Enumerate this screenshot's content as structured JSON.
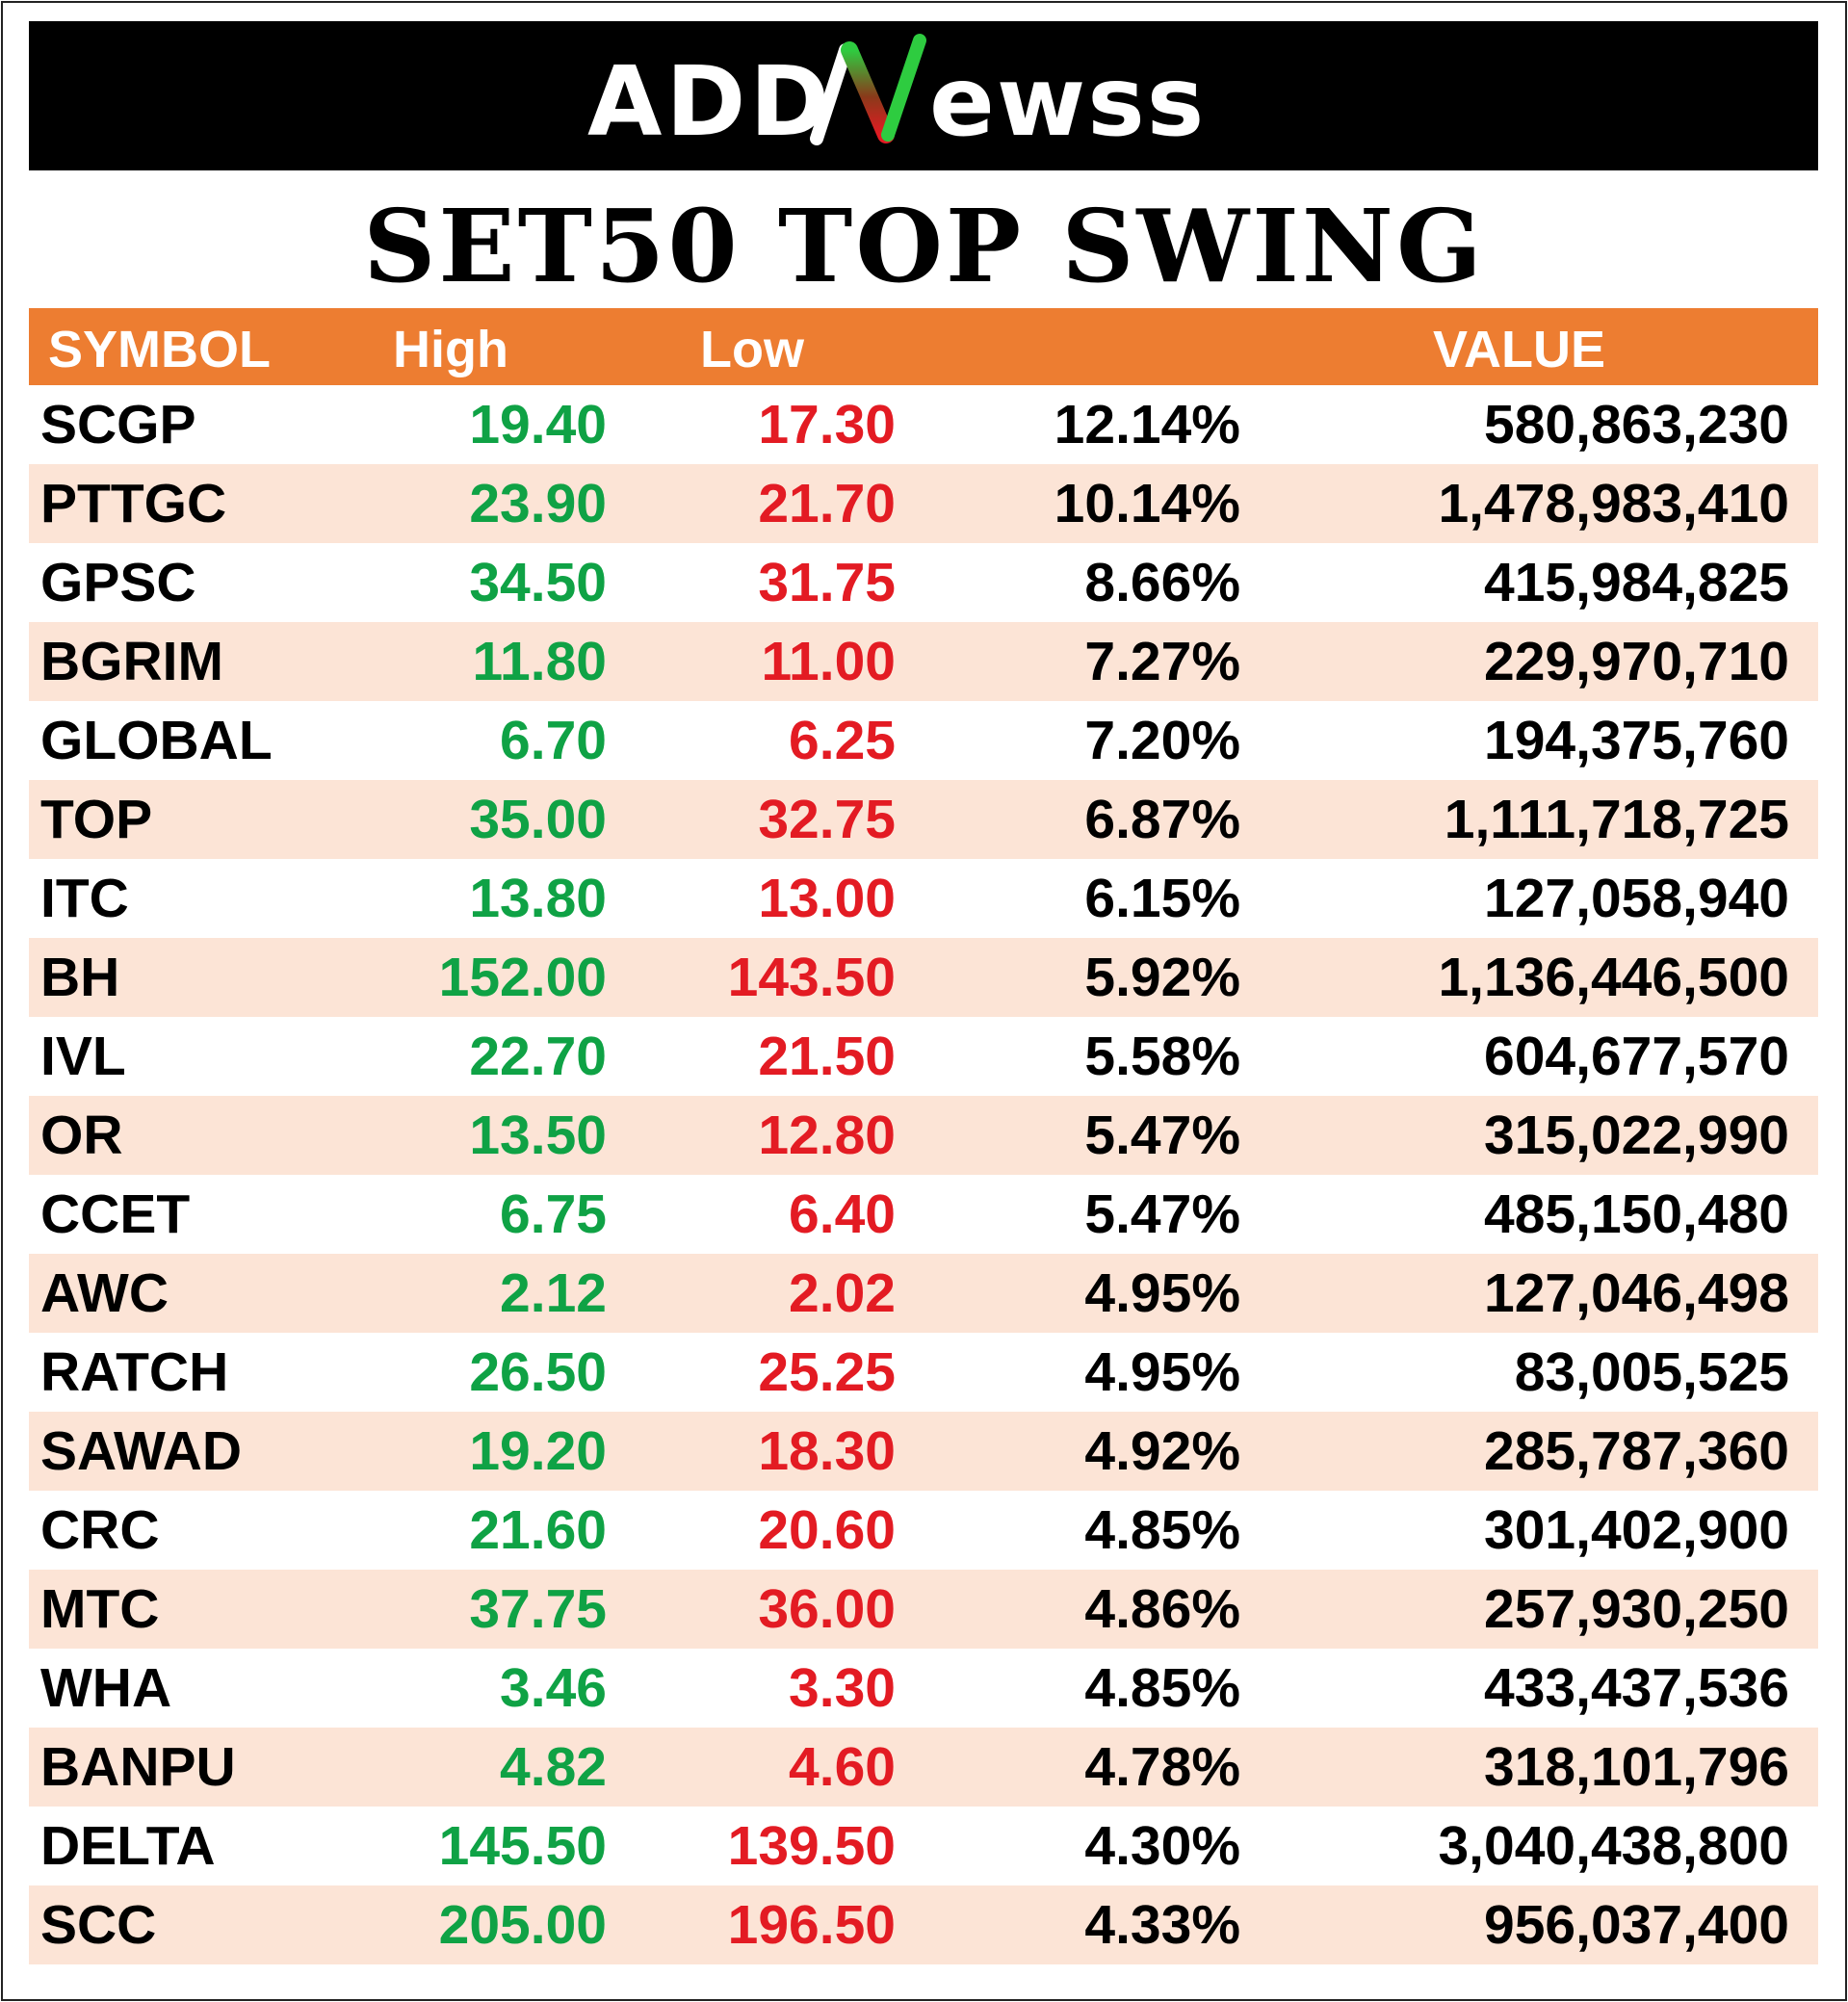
{
  "brand": {
    "logo_text_left": "ADD",
    "logo_text_right": "ewss",
    "logo_icon": "green-red-N-stroke-icon"
  },
  "title": "SET50 TOP SWING",
  "table": {
    "headers": {
      "symbol": "SYMBOL",
      "high": "High",
      "low": "Low",
      "change": "",
      "value": "VALUE"
    },
    "rows": [
      {
        "symbol": "SCGP",
        "high": "19.40",
        "low": "17.30",
        "change": "12.14%",
        "value": "580,863,230"
      },
      {
        "symbol": "PTTGC",
        "high": "23.90",
        "low": "21.70",
        "change": "10.14%",
        "value": "1,478,983,410"
      },
      {
        "symbol": "GPSC",
        "high": "34.50",
        "low": "31.75",
        "change": "8.66%",
        "value": "415,984,825"
      },
      {
        "symbol": "BGRIM",
        "high": "11.80",
        "low": "11.00",
        "change": "7.27%",
        "value": "229,970,710"
      },
      {
        "symbol": "GLOBAL",
        "high": "6.70",
        "low": "6.25",
        "change": "7.20%",
        "value": "194,375,760"
      },
      {
        "symbol": "TOP",
        "high": "35.00",
        "low": "32.75",
        "change": "6.87%",
        "value": "1,111,718,725"
      },
      {
        "symbol": "ITC",
        "high": "13.80",
        "low": "13.00",
        "change": "6.15%",
        "value": "127,058,940"
      },
      {
        "symbol": "BH",
        "high": "152.00",
        "low": "143.50",
        "change": "5.92%",
        "value": "1,136,446,500"
      },
      {
        "symbol": "IVL",
        "high": "22.70",
        "low": "21.50",
        "change": "5.58%",
        "value": "604,677,570"
      },
      {
        "symbol": "OR",
        "high": "13.50",
        "low": "12.80",
        "change": "5.47%",
        "value": "315,022,990"
      },
      {
        "symbol": "CCET",
        "high": "6.75",
        "low": "6.40",
        "change": "5.47%",
        "value": "485,150,480"
      },
      {
        "symbol": "AWC",
        "high": "2.12",
        "low": "2.02",
        "change": "4.95%",
        "value": "127,046,498"
      },
      {
        "symbol": "RATCH",
        "high": "26.50",
        "low": "25.25",
        "change": "4.95%",
        "value": "83,005,525"
      },
      {
        "symbol": "SAWAD",
        "high": "19.20",
        "low": "18.30",
        "change": "4.92%",
        "value": "285,787,360"
      },
      {
        "symbol": "CRC",
        "high": "21.60",
        "low": "20.60",
        "change": "4.85%",
        "value": "301,402,900"
      },
      {
        "symbol": "MTC",
        "high": "37.75",
        "low": "36.00",
        "change": "4.86%",
        "value": "257,930,250"
      },
      {
        "symbol": "WHA",
        "high": "3.46",
        "low": "3.30",
        "change": "4.85%",
        "value": "433,437,536"
      },
      {
        "symbol": "BANPU",
        "high": "4.82",
        "low": "4.60",
        "change": "4.78%",
        "value": "318,101,796"
      },
      {
        "symbol": "DELTA",
        "high": "145.50",
        "low": "139.50",
        "change": "4.30%",
        "value": "3,040,438,800"
      },
      {
        "symbol": "SCC",
        "high": "205.00",
        "low": "196.50",
        "change": "4.33%",
        "value": "956,037,400"
      }
    ]
  },
  "colors": {
    "header_bg": "#ED7D31",
    "alt_row_bg": "#FCE4D6",
    "high_text": "#0FA245",
    "low_text": "#E31B23",
    "brand_bar": "#000000"
  }
}
